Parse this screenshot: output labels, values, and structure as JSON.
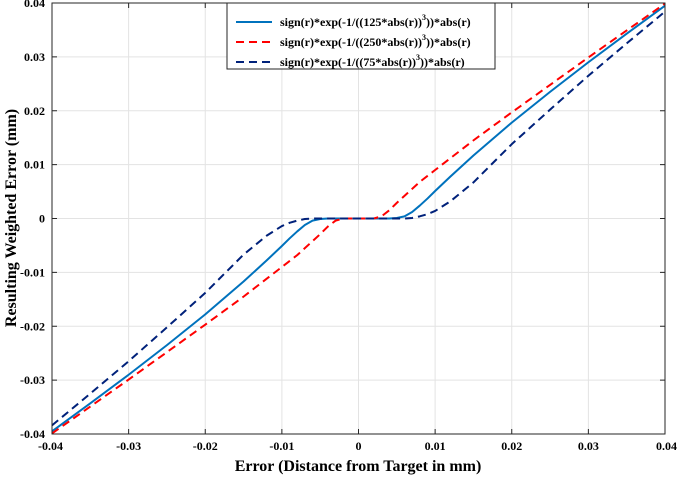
{
  "chart_data": {
    "type": "line",
    "xlabel": "Error (Distance from Target in mm)",
    "ylabel": "Resulting Weighted Error (mm)",
    "xlim": [
      -0.04,
      0.04
    ],
    "ylim": [
      -0.04,
      0.04
    ],
    "grid": true,
    "legend_position": "top-center",
    "xticks": [
      -0.04,
      -0.03,
      -0.02,
      -0.01,
      0,
      0.01,
      0.02,
      0.03,
      0.04
    ],
    "yticks": [
      -0.04,
      -0.03,
      -0.02,
      -0.01,
      0,
      0.01,
      0.02,
      0.03,
      0.04
    ],
    "xtick_labels": [
      "-0.04",
      "-0.03",
      "-0.02",
      "-0.01",
      "0",
      "0.01",
      "0.02",
      "0.03",
      "0.04"
    ],
    "ytick_labels": [
      "-0.04",
      "-0.03",
      "-0.02",
      "-0.01",
      "0",
      "0.01",
      "0.02",
      "0.03",
      "0.04"
    ],
    "series": [
      {
        "name": "sign(r)*exp(-1/((125*abs(r))^3))*abs(r)",
        "legend_main": "sign(r)*exp(-1/((125*abs(r))",
        "legend_sup": "3",
        "legend_tail": "))*abs(r)",
        "k": 125,
        "color": "#0072bd",
        "dash": "solid",
        "x": [
          -0.04,
          -0.035,
          -0.03,
          -0.025,
          -0.02,
          -0.015,
          -0.012,
          -0.01,
          -0.009,
          -0.008,
          -0.007,
          -0.006,
          -0.005,
          -0.004,
          -0.002,
          0,
          0.002,
          0.004,
          0.005,
          0.006,
          0.007,
          0.008,
          0.009,
          0.01,
          0.012,
          0.015,
          0.02,
          0.025,
          0.03,
          0.035,
          0.04
        ],
        "y": [
          -0.0395,
          -0.0343,
          -0.029,
          -0.0235,
          -0.0178,
          -0.0117,
          -0.0078,
          -0.0051,
          -0.0037,
          -0.0024,
          -0.0012,
          -0.0004,
          -0.0001,
          0,
          0,
          0,
          0,
          0,
          0.0001,
          0.0004,
          0.0012,
          0.0024,
          0.0037,
          0.0051,
          0.0078,
          0.0117,
          0.0178,
          0.0235,
          0.029,
          0.0343,
          0.0395
        ]
      },
      {
        "name": "sign(r)*exp(-1/((250*abs(r))^3))*abs(r)",
        "legend_main": "sign(r)*exp(-1/((250*abs(r))",
        "legend_sup": "3",
        "legend_tail": "))*abs(r)",
        "k": 250,
        "color": "#ff0000",
        "dash": "dashed",
        "x": [
          -0.04,
          -0.035,
          -0.03,
          -0.025,
          -0.02,
          -0.015,
          -0.012,
          -0.01,
          -0.009,
          -0.008,
          -0.007,
          -0.006,
          -0.005,
          -0.004,
          -0.003,
          -0.002,
          0,
          0.002,
          0.003,
          0.004,
          0.005,
          0.006,
          0.007,
          0.008,
          0.009,
          0.01,
          0.012,
          0.015,
          0.02,
          0.025,
          0.03,
          0.035,
          0.04
        ],
        "y": [
          -0.0399,
          -0.0349,
          -0.0299,
          -0.0248,
          -0.0197,
          -0.0145,
          -0.0112,
          -0.009,
          -0.0079,
          -0.0068,
          -0.0055,
          -0.0042,
          -0.0029,
          -0.0015,
          -0.0004,
          0,
          0,
          0,
          0.0004,
          0.0015,
          0.0029,
          0.0042,
          0.0055,
          0.0068,
          0.0079,
          0.009,
          0.0112,
          0.0145,
          0.0197,
          0.0248,
          0.0299,
          0.0349,
          0.0399
        ]
      },
      {
        "name": "sign(r)*exp(-1/((75*abs(r))^3))*abs(r)",
        "legend_main": "sign(r)*exp(-1/((75*abs(r))",
        "legend_sup": "3",
        "legend_tail": "))*abs(r)",
        "k": 75,
        "color": "#00217a",
        "dash": "dashed",
        "x": [
          -0.04,
          -0.035,
          -0.03,
          -0.025,
          -0.02,
          -0.015,
          -0.012,
          -0.01,
          -0.009,
          -0.008,
          -0.007,
          -0.006,
          -0.005,
          -0.004,
          -0.002,
          0,
          0.002,
          0.004,
          0.005,
          0.006,
          0.007,
          0.008,
          0.009,
          0.01,
          0.012,
          0.015,
          0.02,
          0.025,
          0.03,
          0.035,
          0.04
        ],
        "y": [
          -0.0384,
          -0.0325,
          -0.0265,
          -0.0202,
          -0.0138,
          -0.0067,
          -0.0032,
          -0.0014,
          -0.0008,
          -0.0004,
          -0.0001,
          0,
          0,
          0,
          0,
          0,
          0,
          0,
          0,
          0,
          0.0001,
          0.0004,
          0.0008,
          0.0014,
          0.0032,
          0.0067,
          0.0138,
          0.0202,
          0.0265,
          0.0325,
          0.0384
        ]
      }
    ]
  }
}
